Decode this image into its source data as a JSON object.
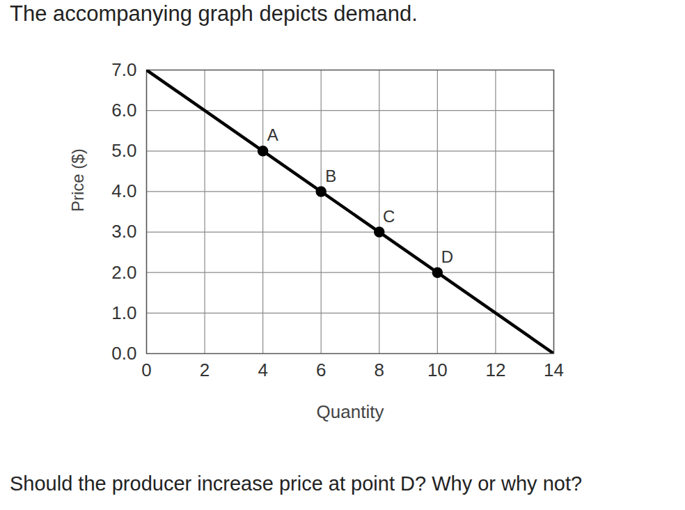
{
  "chart_data": {
    "type": "line",
    "title": "The accompanying graph depicts demand.",
    "caption": "Should the producer increase price at point D? Why or why not?",
    "x_label": "Quantity",
    "y_label": "Price ($)",
    "x": [
      0,
      14
    ],
    "values": [
      7,
      0
    ],
    "color": "#000000",
    "points": {
      "labels": [
        "A",
        "B",
        "C",
        "D"
      ],
      "x": [
        4,
        6,
        8,
        10
      ],
      "values": [
        5,
        4,
        3,
        2
      ]
    },
    "xlim": [
      0,
      14
    ],
    "ylim": [
      0,
      7
    ],
    "xticks": [
      0,
      2,
      4,
      6,
      8,
      10,
      12,
      14
    ],
    "yticks": [
      0,
      1,
      2,
      3,
      4,
      5,
      6,
      7
    ],
    "grid": true
  }
}
